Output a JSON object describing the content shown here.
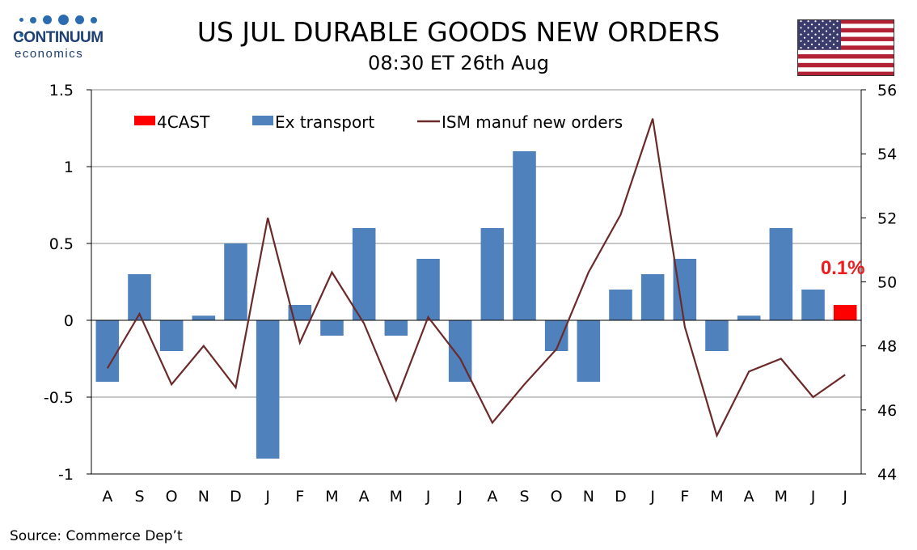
{
  "header": {
    "title": "US JUL DURABLE GOODS NEW ORDERS",
    "subtitle": "08:30 ET 26th Aug"
  },
  "logo": {
    "word1": "CONTINUUM",
    "word2": "economics"
  },
  "source": "Source: Commerce Dep’t",
  "colors": {
    "bars": "#4f81bd",
    "forecast": "#ff0000",
    "line": "#6b2a2a",
    "callout": "#ee1c1c",
    "logo": "#1d3f73"
  },
  "chart_data": {
    "type": "bar",
    "categories": [
      "A",
      "S",
      "O",
      "N",
      "D",
      "J",
      "F",
      "M",
      "A",
      "M",
      "J",
      "J",
      "A",
      "S",
      "O",
      "N",
      "D",
      "J",
      "F",
      "M",
      "A",
      "M",
      "J",
      "J"
    ],
    "series": [
      {
        "name": "Ex transport",
        "axis": "left",
        "type": "bar",
        "values": [
          -0.4,
          0.3,
          -0.2,
          0.03,
          0.5,
          -0.9,
          0.1,
          -0.1,
          0.6,
          -0.1,
          0.4,
          -0.4,
          0.6,
          1.1,
          -0.2,
          -0.4,
          0.2,
          0.3,
          0.4,
          -0.2,
          0.03,
          0.6,
          0.2,
          null
        ]
      },
      {
        "name": "4CAST",
        "axis": "left",
        "type": "bar",
        "values": [
          null,
          null,
          null,
          null,
          null,
          null,
          null,
          null,
          null,
          null,
          null,
          null,
          null,
          null,
          null,
          null,
          null,
          null,
          null,
          null,
          null,
          null,
          null,
          0.1
        ]
      },
      {
        "name": "ISM manuf new orders",
        "axis": "right",
        "type": "line",
        "values": [
          47.3,
          49.0,
          46.8,
          48.0,
          46.7,
          52.0,
          48.1,
          50.3,
          48.7,
          46.3,
          48.9,
          47.6,
          45.6,
          46.8,
          47.9,
          50.3,
          52.1,
          55.1,
          48.6,
          45.2,
          47.2,
          47.6,
          46.4,
          47.1
        ]
      }
    ],
    "yleft": {
      "ylim": [
        -1,
        1.5
      ],
      "ticks": [
        "-1",
        "-0.5",
        "0",
        "0.5",
        "1",
        "1.5"
      ],
      "tick_values": [
        -1,
        -0.5,
        0,
        0.5,
        1,
        1.5
      ]
    },
    "yright": {
      "ylim": [
        44,
        56
      ],
      "ticks": [
        "44",
        "46",
        "48",
        "50",
        "52",
        "54",
        "56"
      ],
      "tick_values": [
        44,
        46,
        48,
        50,
        52,
        54,
        56
      ]
    },
    "legend": [
      "4CAST",
      "Ex transport",
      "ISM manuf new orders"
    ],
    "legend_position": "top",
    "annotation": "0.1%",
    "grid": "horizontal"
  }
}
